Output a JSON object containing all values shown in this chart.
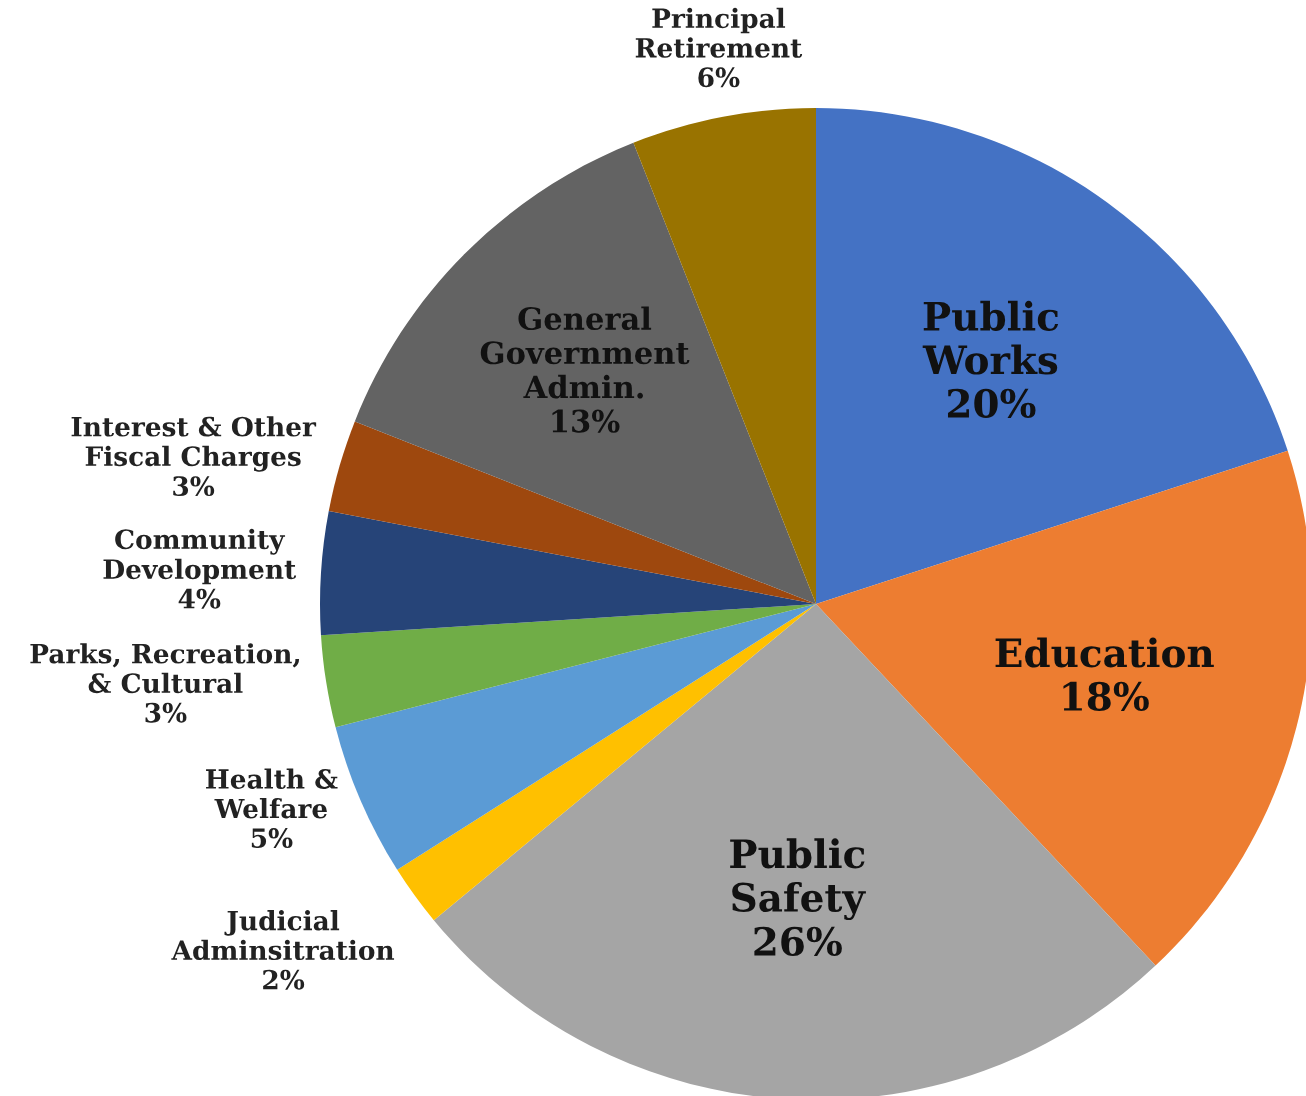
{
  "chart_data": {
    "type": "pie",
    "categories": [
      "Public\nWorks",
      "Education",
      "Public\nSafety",
      "Judicial\nAdminsitration",
      "Health &\nWelfare",
      "Parks, Recreation,\n& Cultural",
      "Community\nDevelopment",
      "Interest & Other\nFiscal Charges",
      "General\nGovernment\nAdmin.",
      "Principal\nRetirement"
    ],
    "values": [
      20,
      18,
      26,
      2,
      5,
      3,
      4,
      3,
      13,
      6
    ],
    "value_labels": [
      "20%",
      "18%",
      "26%",
      "2%",
      "5%",
      "3%",
      "4%",
      "3%",
      "13%",
      "6%"
    ],
    "colors": [
      "#4472c4",
      "#ed7d31",
      "#a5a5a5",
      "#ffc000",
      "#5b9bd5",
      "#70ad47",
      "#264478",
      "#9e480e",
      "#636363",
      "#997300"
    ],
    "legend": false
  }
}
